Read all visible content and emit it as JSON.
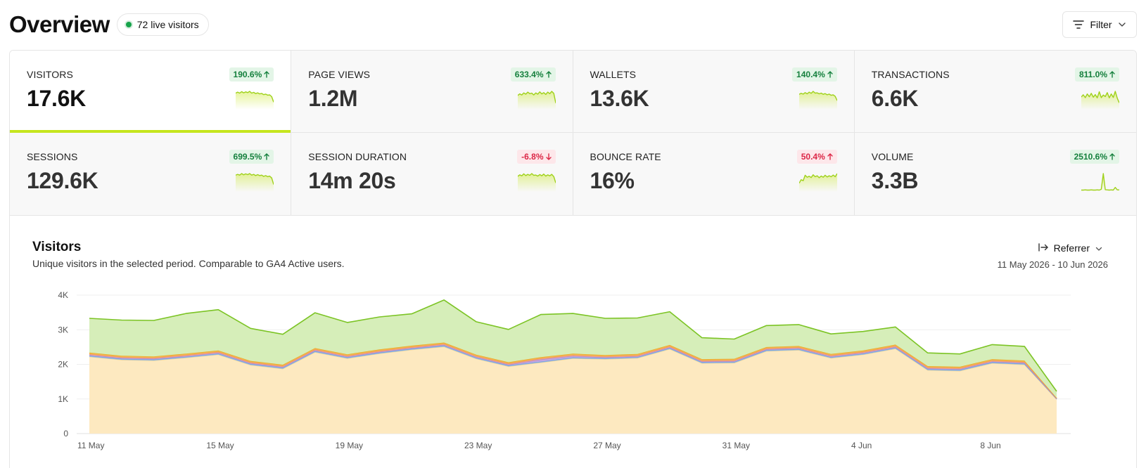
{
  "header": {
    "title": "Overview",
    "live_visitors": "72 live visitors",
    "filter_label": "Filter",
    "live_color": "#16a34a"
  },
  "metrics": [
    {
      "id": "visitors",
      "label": "VISITORS",
      "value": "17.6K",
      "change": "190.6%",
      "direction": "up",
      "active": true,
      "sparkline": [
        6,
        6.4,
        6,
        6.6,
        6.1,
        6.5,
        6.2,
        6.7,
        6,
        6.3,
        5.8,
        6.1,
        5.7,
        5.9,
        5.4,
        5.6,
        5.2,
        5.3,
        4.6,
        2.4
      ]
    },
    {
      "id": "page-views",
      "label": "PAGE VIEWS",
      "value": "1.2M",
      "change": "633.4%",
      "direction": "up",
      "active": false,
      "sparkline": [
        5,
        5.6,
        5.2,
        6,
        5.5,
        6.3,
        5.7,
        5.9,
        5.2,
        6,
        5.5,
        6.4,
        5.6,
        6.1,
        5.4,
        6.3,
        5.7,
        6.6,
        5.8,
        2
      ]
    },
    {
      "id": "wallets",
      "label": "WALLETS",
      "value": "13.6K",
      "change": "140.4%",
      "direction": "up",
      "active": false,
      "sparkline": [
        5.6,
        6,
        5.7,
        6.3,
        5.8,
        6.5,
        6,
        6.8,
        6.1,
        6.2,
        5.8,
        6.1,
        5.6,
        5.9,
        5.4,
        5.7,
        5.2,
        5.4,
        4.8,
        3.1
      ]
    },
    {
      "id": "transactions",
      "label": "TRANSACTIONS",
      "value": "6.6K",
      "change": "811.0%",
      "direction": "up",
      "active": false,
      "sparkline": [
        5.2,
        6.2,
        4.9,
        6.6,
        5.3,
        6.9,
        5.1,
        6.3,
        4.8,
        7.6,
        4.9,
        6.1,
        5.4,
        7.2,
        4.8,
        6.6,
        5,
        7.8,
        4.6,
        2.5
      ]
    },
    {
      "id": "sessions",
      "label": "SESSIONS",
      "value": "129.6K",
      "change": "699.5%",
      "direction": "up",
      "active": false,
      "sparkline": [
        6,
        6.3,
        6,
        6.6,
        6.1,
        6.5,
        6.2,
        6.6,
        6,
        6.3,
        5.8,
        6.2,
        5.8,
        6,
        5.5,
        5.8,
        5.4,
        5.6,
        4.9,
        2.3
      ]
    },
    {
      "id": "session-duration",
      "label": "SESSION DURATION",
      "value": "14m 20s",
      "change": "-6.8%",
      "direction": "down",
      "active": false,
      "sparkline": [
        5.6,
        6.2,
        5.8,
        6.6,
        5.9,
        6.4,
        6,
        6.7,
        6,
        6.1,
        5.7,
        6.3,
        5.8,
        6.5,
        5.7,
        6.2,
        5.8,
        6.4,
        5.5,
        3
      ]
    },
    {
      "id": "bounce-rate",
      "label": "BOUNCE RATE",
      "value": "16%",
      "change": "50.4%",
      "direction": "up",
      "bad": true,
      "active": false,
      "sparkline": [
        3,
        4.4,
        4,
        6.2,
        5.4,
        5.8,
        5.3,
        6.4,
        5.6,
        6,
        5.2,
        5.9,
        5.4,
        6.2,
        5.5,
        6,
        5.6,
        6.3,
        5.6,
        6.9
      ]
    },
    {
      "id": "volume",
      "label": "VOLUME",
      "value": "3.3B",
      "change": "2510.6%",
      "direction": "up",
      "active": false,
      "sparkline": [
        0.2,
        0.2,
        0.3,
        0.2,
        0.2,
        0.3,
        0.2,
        0.2,
        0.3,
        0.2,
        0.6,
        9,
        0.4,
        0.3,
        0.2,
        0.3,
        0.2,
        1.6,
        0.3,
        0.3
      ]
    }
  ],
  "chart_section": {
    "title": "Visitors",
    "subtitle": "Unique visitors in the selected period. Comparable to GA4 Active users.",
    "referrer_label": "Referrer",
    "date_range": "11 May 2026 - 10 Jun 2026"
  },
  "chart_data": {
    "type": "area",
    "stacked": true,
    "ylim": [
      0,
      4000
    ],
    "yticks": [
      0,
      1000,
      2000,
      3000,
      4000
    ],
    "ytick_labels": [
      "0",
      "1K",
      "2K",
      "3K",
      "4K"
    ],
    "xtick_labels": [
      "11 May",
      "15 May",
      "19 May",
      "23 May",
      "27 May",
      "31 May",
      "4 Jun",
      "8 Jun"
    ],
    "x": [
      "11 May",
      "12 May",
      "13 May",
      "14 May",
      "15 May",
      "16 May",
      "17 May",
      "18 May",
      "19 May",
      "20 May",
      "21 May",
      "22 May",
      "23 May",
      "24 May",
      "25 May",
      "26 May",
      "27 May",
      "28 May",
      "29 May",
      "30 May",
      "31 May",
      "1 Jun",
      "2 Jun",
      "3 Jun",
      "4 Jun",
      "5 Jun",
      "6 Jun",
      "7 Jun",
      "8 Jun",
      "9 Jun",
      "10 Jun"
    ],
    "grid": true,
    "series": [
      {
        "color": "#fde9c0",
        "line": "#fcd88f",
        "values": [
          2220,
          2130,
          2110,
          2190,
          2280,
          1980,
          1870,
          2350,
          2170,
          2310,
          2420,
          2510,
          2160,
          1940,
          2050,
          2170,
          2150,
          2180,
          2440,
          2030,
          2040,
          2380,
          2410,
          2180,
          2280,
          2450,
          1830,
          1810,
          2030,
          1990,
          990
        ]
      },
      {
        "color": "#8fb8e8",
        "line": "#6fa3dc",
        "values": [
          30,
          30,
          30,
          30,
          30,
          30,
          30,
          30,
          30,
          30,
          30,
          30,
          30,
          30,
          30,
          30,
          30,
          30,
          30,
          30,
          30,
          30,
          30,
          30,
          30,
          30,
          30,
          30,
          30,
          30,
          10
        ]
      },
      {
        "color": "#c4a6e0",
        "line": "#a98bd0",
        "values": [
          20,
          20,
          20,
          20,
          20,
          20,
          20,
          20,
          20,
          20,
          20,
          20,
          20,
          20,
          60,
          40,
          20,
          20,
          20,
          20,
          20,
          20,
          20,
          20,
          20,
          20,
          20,
          20,
          20,
          20,
          10
        ]
      },
      {
        "color": "#f2a68f",
        "line": "#e98b70",
        "values": [
          30,
          30,
          30,
          30,
          30,
          30,
          30,
          30,
          30,
          30,
          30,
          30,
          30,
          30,
          30,
          30,
          30,
          30,
          30,
          30,
          30,
          30,
          30,
          30,
          30,
          30,
          30,
          30,
          30,
          30,
          10
        ]
      },
      {
        "color": "#f5b848",
        "line": "#e9a223",
        "values": [
          40,
          40,
          40,
          40,
          40,
          40,
          40,
          40,
          40,
          40,
          40,
          40,
          40,
          40,
          40,
          40,
          40,
          40,
          40,
          40,
          40,
          40,
          40,
          40,
          40,
          40,
          40,
          40,
          40,
          40,
          10
        ]
      },
      {
        "color": "#d6eeb9",
        "line": "#7cc425",
        "values": [
          990,
          1030,
          1040,
          1160,
          1180,
          940,
          880,
          1020,
          920,
          940,
          920,
          1230,
          950,
          950,
          1230,
          1160,
          1060,
          1040,
          960,
          620,
          570,
          620,
          620,
          580,
          550,
          510,
          380,
          370,
          420,
          410,
          190
        ]
      }
    ]
  }
}
